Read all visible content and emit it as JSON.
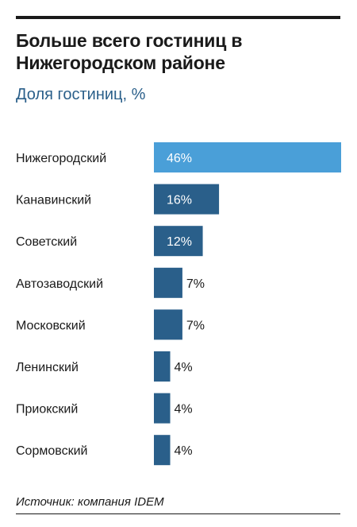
{
  "chart_data": {
    "type": "bar",
    "orientation": "horizontal",
    "title": "Больше всего гостиниц в Нижегородском районе",
    "subtitle": "Доля гостиниц, %",
    "categories": [
      "Нижегородский",
      "Канавинский",
      "Советский",
      "Автозаводский",
      "Московский",
      "Ленинский",
      "Приокский",
      "Сормовский"
    ],
    "values": [
      46,
      16,
      12,
      7,
      7,
      4,
      4,
      4
    ],
    "value_labels": [
      "46%",
      "16%",
      "12%",
      "7%",
      "7%",
      "4%",
      "4%",
      "4%"
    ],
    "xlim": [
      0,
      46
    ],
    "grid": false,
    "legend": "none",
    "colors": {
      "highlight": "#4a9fd8",
      "bar": "#2a5f8a",
      "label_inside": "#ffffff",
      "label_outside": "#1a1a1a"
    },
    "source": "Источник: компания IDEM"
  }
}
